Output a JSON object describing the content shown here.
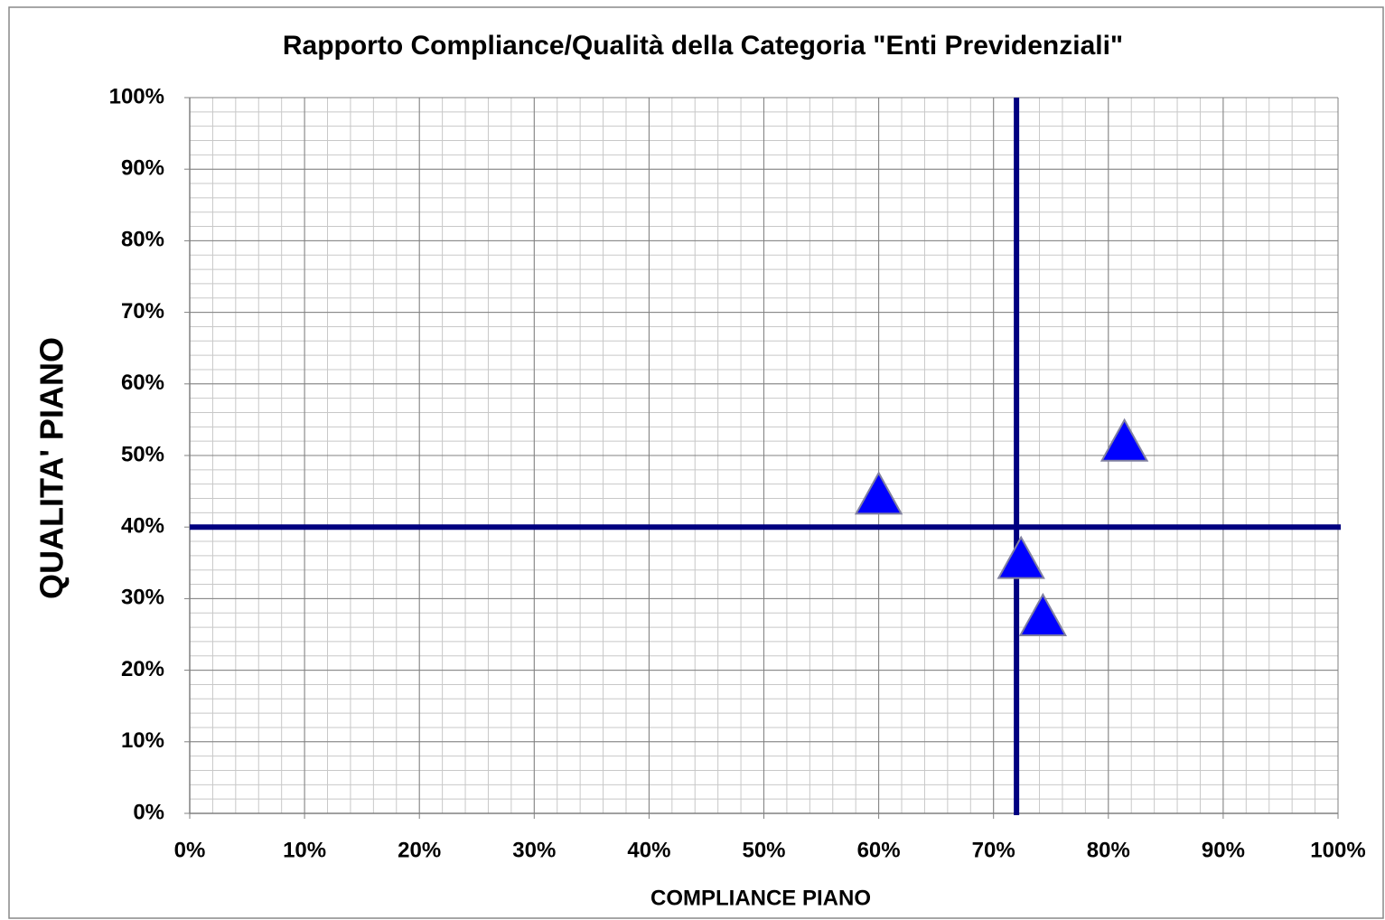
{
  "chart_data": {
    "type": "scatter",
    "title": "Rapporto Compliance/Qualità della Categoria  \"Enti Previdenziali\"",
    "xlabel": "COMPLIANCE PIANO",
    "ylabel": "QUALITA' PIANO",
    "x": [
      60,
      81.4,
      72.4,
      74.3
    ],
    "y": [
      44.4,
      51.8,
      35.4,
      27.4
    ],
    "color": "#0000ff",
    "marker": "triangle",
    "xlim": [
      0,
      100
    ],
    "ylim": [
      0,
      100
    ],
    "xticks": [
      {
        "value": 0,
        "label": "0%"
      },
      {
        "value": 10,
        "label": "10%"
      },
      {
        "value": 20,
        "label": "20%"
      },
      {
        "value": 30,
        "label": "30%"
      },
      {
        "value": 40,
        "label": "40%"
      },
      {
        "value": 50,
        "label": "50%"
      },
      {
        "value": 60,
        "label": "60%"
      },
      {
        "value": 70,
        "label": "70%"
      },
      {
        "value": 80,
        "label": "80%"
      },
      {
        "value": 90,
        "label": "90%"
      },
      {
        "value": 100,
        "label": "100%"
      }
    ],
    "yticks": [
      {
        "value": 0,
        "label": "0%"
      },
      {
        "value": 10,
        "label": "10%"
      },
      {
        "value": 20,
        "label": "20%"
      },
      {
        "value": 30,
        "label": "30%"
      },
      {
        "value": 40,
        "label": "40%"
      },
      {
        "value": 50,
        "label": "50%"
      },
      {
        "value": 60,
        "label": "60%"
      },
      {
        "value": 70,
        "label": "70%"
      },
      {
        "value": 80,
        "label": "80%"
      },
      {
        "value": 90,
        "label": "90%"
      },
      {
        "value": 100,
        "label": "100%"
      }
    ],
    "grid": true,
    "minor_grid_step": 2,
    "reference_lines": {
      "x": 72,
      "y": 40,
      "color": "#000080"
    }
  }
}
